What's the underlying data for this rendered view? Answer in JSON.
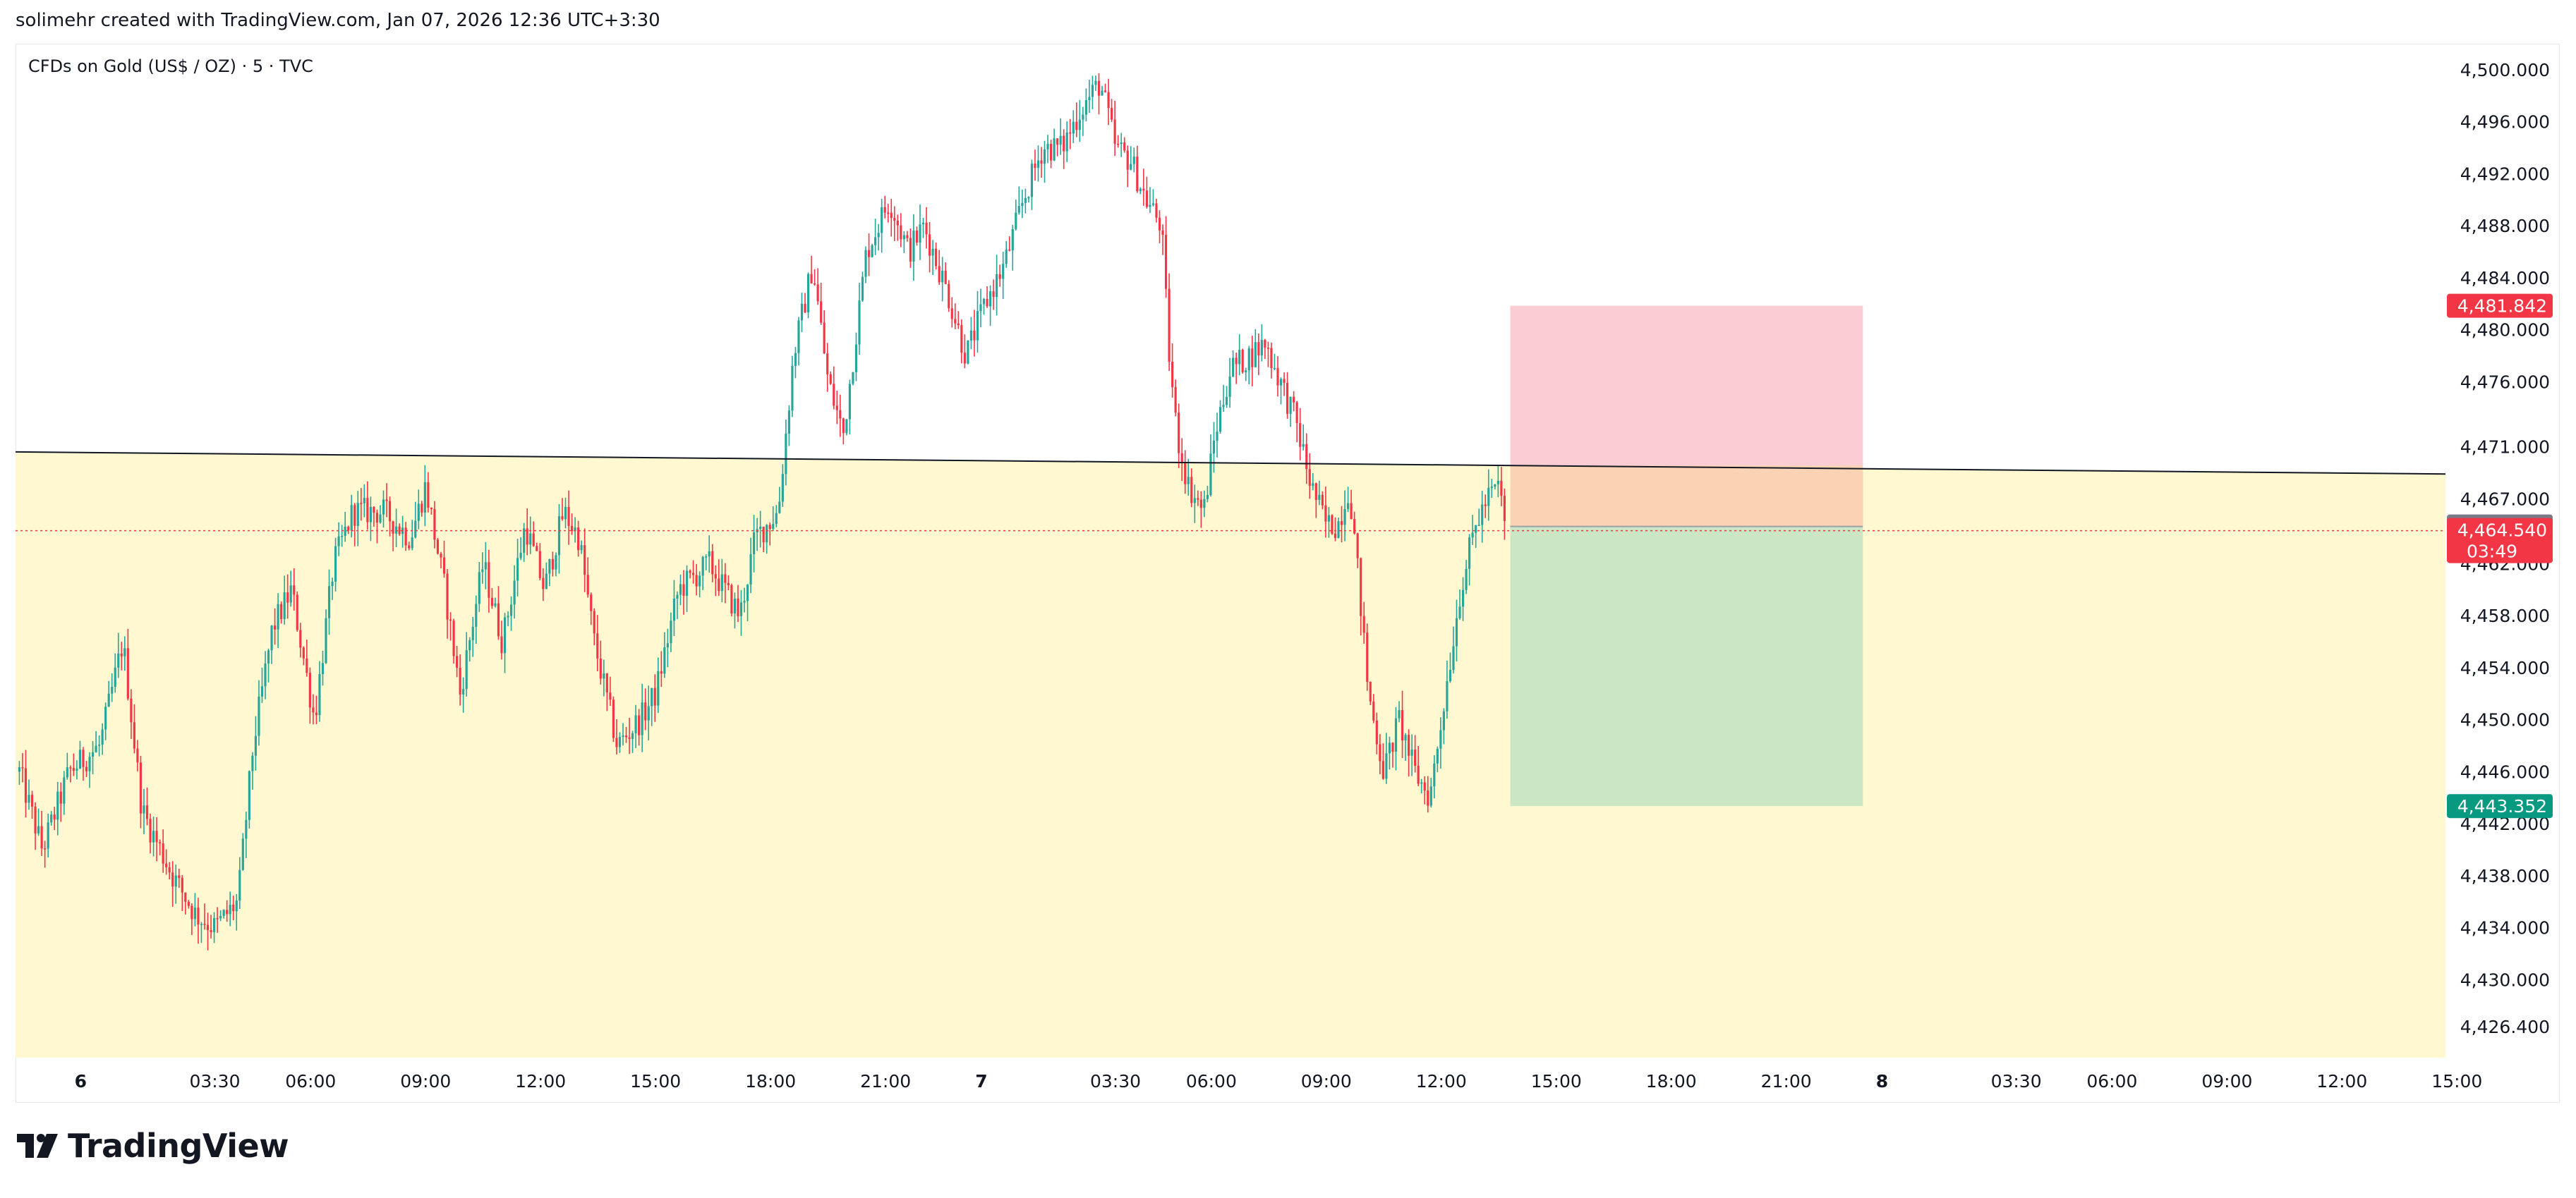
{
  "header": {
    "note": "solimehr created with TradingView.com, Jan 07, 2026 12:36 UTC+3:30",
    "symbol_title": "CFDs on Gold (US$ / OZ) · 5 · TVC",
    "brand": "TradingView"
  },
  "colors": {
    "up": "#26a69a",
    "down": "#f23645",
    "zone_fill": "#fff8d1",
    "stop_zone": "#f9cdd3",
    "target_zone": "#cbe6c4",
    "overlap_zone": "#f9d3b4",
    "trend_line": "#131722",
    "price_line": "#f23645",
    "badge_red": "#f23645",
    "badge_gray": "#787b86",
    "badge_green": "#089981"
  },
  "chart_data": {
    "type": "candlestick",
    "symbol": "CFDs on Gold (US$ / OZ)",
    "interval": "5",
    "source": "TVC",
    "y_axis": {
      "min": 4424.0,
      "max": 4502.0,
      "ticks": [
        "4,426.400",
        "4,430.000",
        "4,434.000",
        "4,438.000",
        "4,442.000",
        "4,446.000",
        "4,450.000",
        "4,454.000",
        "4,458.000",
        "4,462.000",
        "4,467.000",
        "4,471.000",
        "4,476.000",
        "4,480.000",
        "4,484.000",
        "4,488.000",
        "4,492.000",
        "4,496.000",
        "4,500.000"
      ],
      "tick_values": [
        4426.4,
        4430,
        4434,
        4438,
        4442,
        4446,
        4450,
        4454,
        4458,
        4462,
        4467,
        4471,
        4476,
        4480,
        4484,
        4488,
        4492,
        4496,
        4500
      ]
    },
    "x_axis": {
      "range_hours": [
        -1.7,
        61.7
      ],
      "ticks": [
        {
          "label": "6",
          "h": 0,
          "bold": true
        },
        {
          "label": "03:30",
          "h": 3.5
        },
        {
          "label": "06:00",
          "h": 6
        },
        {
          "label": "09:00",
          "h": 9
        },
        {
          "label": "12:00",
          "h": 12
        },
        {
          "label": "15:00",
          "h": 15
        },
        {
          "label": "18:00",
          "h": 18
        },
        {
          "label": "21:00",
          "h": 21
        },
        {
          "label": "7",
          "h": 23.5,
          "bold": true
        },
        {
          "label": "03:30",
          "h": 27
        },
        {
          "label": "06:00",
          "h": 29.5
        },
        {
          "label": "09:00",
          "h": 32.5
        },
        {
          "label": "12:00",
          "h": 35.5
        },
        {
          "label": "15:00",
          "h": 38.5
        },
        {
          "label": "18:00",
          "h": 41.5
        },
        {
          "label": "21:00",
          "h": 44.5
        },
        {
          "label": "8",
          "h": 47,
          "bold": true
        },
        {
          "label": "03:30",
          "h": 50.5
        },
        {
          "label": "06:00",
          "h": 53
        },
        {
          "label": "09:00",
          "h": 56
        },
        {
          "label": "12:00",
          "h": 59
        },
        {
          "label": "15:00",
          "h": 62
        }
      ]
    },
    "price_path": [
      [
        -1.6,
        4446
      ],
      [
        -1.0,
        4440
      ],
      [
        -0.3,
        4446
      ],
      [
        0.5,
        4448
      ],
      [
        1.1,
        4456
      ],
      [
        1.6,
        4443
      ],
      [
        2.4,
        4438
      ],
      [
        3.0,
        4435
      ],
      [
        3.5,
        4434
      ],
      [
        4.1,
        4436
      ],
      [
        4.5,
        4448
      ],
      [
        5.0,
        4457
      ],
      [
        5.5,
        4460
      ],
      [
        6.1,
        4450
      ],
      [
        6.6,
        4462
      ],
      [
        7.1,
        4466
      ],
      [
        7.9,
        4466
      ],
      [
        8.6,
        4464
      ],
      [
        9.0,
        4468
      ],
      [
        9.5,
        4460
      ],
      [
        9.9,
        4452
      ],
      [
        10.5,
        4462
      ],
      [
        11.0,
        4456
      ],
      [
        11.6,
        4465
      ],
      [
        12.1,
        4460
      ],
      [
        12.6,
        4466
      ],
      [
        13.0,
        4464
      ],
      [
        13.4,
        4456
      ],
      [
        14.0,
        4448
      ],
      [
        14.6,
        4450
      ],
      [
        15.0,
        4452
      ],
      [
        15.6,
        4460
      ],
      [
        16.4,
        4462
      ],
      [
        17.2,
        4458
      ],
      [
        17.6,
        4464
      ],
      [
        18.2,
        4466
      ],
      [
        18.6,
        4478
      ],
      [
        19.1,
        4485
      ],
      [
        19.5,
        4476
      ],
      [
        19.9,
        4472
      ],
      [
        20.5,
        4486
      ],
      [
        21.1,
        4490
      ],
      [
        21.6,
        4486
      ],
      [
        22.0,
        4488
      ],
      [
        22.6,
        4483
      ],
      [
        23.1,
        4478
      ],
      [
        23.6,
        4482
      ],
      [
        24.1,
        4485
      ],
      [
        24.6,
        4490
      ],
      [
        25.1,
        4494
      ],
      [
        25.6,
        4494
      ],
      [
        26.1,
        4497
      ],
      [
        26.6,
        4499
      ],
      [
        27.0,
        4494
      ],
      [
        27.4,
        4493
      ],
      [
        27.8,
        4490
      ],
      [
        28.2,
        4488
      ],
      [
        28.4,
        4478
      ],
      [
        28.6,
        4472
      ],
      [
        28.9,
        4468
      ],
      [
        29.3,
        4466
      ],
      [
        29.6,
        4472
      ],
      [
        30.0,
        4477
      ],
      [
        30.5,
        4478
      ],
      [
        30.9,
        4479
      ],
      [
        31.3,
        4476
      ],
      [
        31.7,
        4473
      ],
      [
        32.1,
        4468
      ],
      [
        32.5,
        4465
      ],
      [
        32.8,
        4465
      ],
      [
        33.1,
        4468
      ],
      [
        33.3,
        4462
      ],
      [
        33.6,
        4452
      ],
      [
        34.0,
        4446
      ],
      [
        34.4,
        4450
      ],
      [
        34.8,
        4446
      ],
      [
        35.2,
        4444
      ],
      [
        35.6,
        4452
      ],
      [
        36.0,
        4460
      ],
      [
        36.4,
        4465
      ],
      [
        36.7,
        4467
      ],
      [
        37.0,
        4468
      ],
      [
        37.2,
        4464.5
      ]
    ],
    "annotations": {
      "horizontal_zone": {
        "from_price": 4424.0,
        "to_price": 4468.8
      },
      "trend_line": {
        "from": [
          -1.7,
          4470.6
        ],
        "to": [
          61.7,
          4468.9
        ]
      },
      "current_price_line": 4464.54,
      "short_position": {
        "start_h": 37.3,
        "end_h": 46.5,
        "entry": 4464.866,
        "stop": 4481.842,
        "target": 4443.352
      }
    },
    "price_labels": [
      {
        "text": "4,481.842",
        "price": 4481.842,
        "color": "badge_red"
      },
      {
        "text": "4,464.866",
        "price": 4464.866,
        "color": "badge_gray"
      },
      {
        "text": "4,464.540",
        "sub": "03:49",
        "price": 4464.54,
        "color": "badge_red"
      },
      {
        "text": "4,443.352",
        "price": 4443.352,
        "color": "badge_green"
      }
    ]
  }
}
